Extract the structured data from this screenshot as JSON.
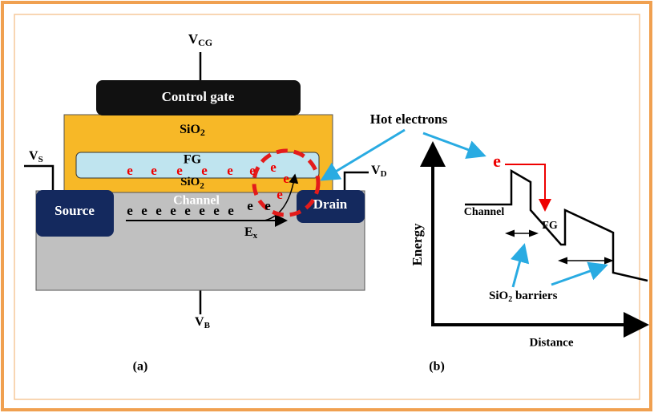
{
  "panel_a": {
    "v_cg": {
      "main": "V",
      "sub": "CG"
    },
    "control_gate": "Control gate",
    "oxide_top": {
      "main": "SiO",
      "sub": "2"
    },
    "floating_gate": "FG",
    "oxide_bottom": {
      "main": "SiO",
      "sub": "2"
    },
    "channel": "Channel",
    "source": "Source",
    "drain": "Drain",
    "v_s": {
      "main": "V",
      "sub": "S"
    },
    "v_d": {
      "main": "V",
      "sub": "D"
    },
    "v_b": {
      "main": "V",
      "sub": "B"
    },
    "field": {
      "main": "E",
      "sub": "x"
    },
    "fg_electrons": [
      "e",
      "e",
      "e",
      "e",
      "e",
      "e",
      "e"
    ],
    "hot_electrons": [
      "e",
      "e"
    ],
    "channel_electrons": [
      "e",
      "e",
      "e",
      "e",
      "e",
      "e",
      "e",
      "e",
      "e",
      "e"
    ],
    "caption": "(a)"
  },
  "hot_electrons_label": "Hot electrons",
  "panel_b": {
    "electron": "e",
    "channel": "Channel",
    "floating_gate": "FG",
    "y_axis": "Energy",
    "x_axis": "Distance",
    "barriers": {
      "main": "SiO",
      "sub": "2",
      "rest": " barriers"
    },
    "caption": "(b)"
  }
}
